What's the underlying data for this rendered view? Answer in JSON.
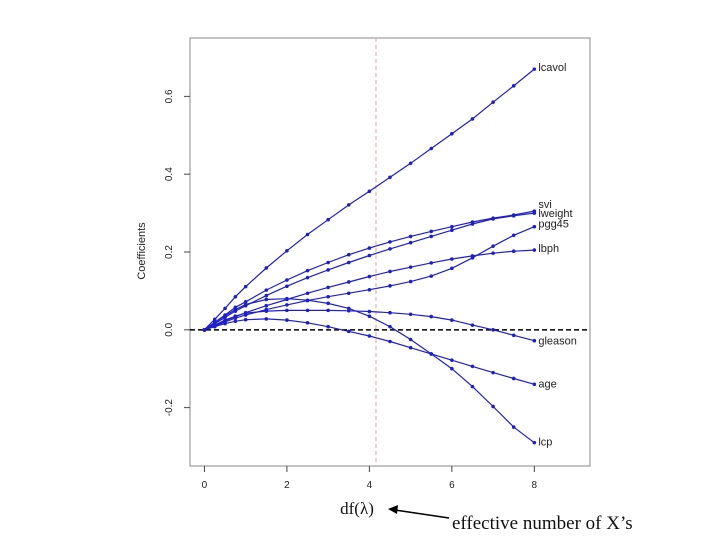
{
  "chart_data": {
    "type": "line",
    "xlabel": "df(λ)",
    "ylabel": "Coefficients",
    "xlim": [
      -0.35,
      9.35
    ],
    "ylim": [
      -0.35,
      0.75
    ],
    "x_ticks": [
      0,
      2,
      4,
      6,
      8
    ],
    "y_ticks": [
      -0.2,
      0.0,
      0.2,
      0.4,
      0.6
    ],
    "y_tick_labels": [
      "-0.2",
      "0.0",
      "0.2",
      "0.4",
      "0.6"
    ],
    "grid": false,
    "reference_lines": {
      "vertical_x": 4.16,
      "horizontal_y": 0.0
    },
    "annotation": "effective number of X’s",
    "colors": {
      "series": "#1f1fc8",
      "zero_line": "#000000",
      "vertical_line": "#d8a7a7",
      "frame": "#888888"
    },
    "x": [
      0,
      0.25,
      0.5,
      0.75,
      1,
      1.5,
      2,
      2.5,
      3,
      3.5,
      4,
      4.5,
      5,
      5.5,
      6,
      6.5,
      7,
      7.5,
      8
    ],
    "series": [
      {
        "name": "lcavol",
        "values": [
          0,
          0.027,
          0.055,
          0.085,
          0.111,
          0.159,
          0.203,
          0.245,
          0.283,
          0.321,
          0.356,
          0.392,
          0.428,
          0.466,
          0.504,
          0.542,
          0.585,
          0.627,
          0.67
        ]
      },
      {
        "name": "svi",
        "values": [
          0,
          0.019,
          0.038,
          0.058,
          0.072,
          0.102,
          0.128,
          0.152,
          0.173,
          0.193,
          0.21,
          0.226,
          0.24,
          0.253,
          0.265,
          0.277,
          0.287,
          0.295,
          0.305
        ]
      },
      {
        "name": "lweight",
        "values": [
          0,
          0.016,
          0.032,
          0.048,
          0.062,
          0.088,
          0.112,
          0.134,
          0.154,
          0.173,
          0.191,
          0.208,
          0.224,
          0.24,
          0.256,
          0.272,
          0.285,
          0.293,
          0.3
        ]
      },
      {
        "name": "pgg45",
        "values": [
          0,
          0.01,
          0.02,
          0.03,
          0.038,
          0.052,
          0.064,
          0.075,
          0.085,
          0.094,
          0.103,
          0.113,
          0.124,
          0.138,
          0.158,
          0.185,
          0.215,
          0.243,
          0.265
        ]
      },
      {
        "name": "lbph",
        "values": [
          0,
          0.011,
          0.023,
          0.034,
          0.044,
          0.062,
          0.078,
          0.094,
          0.109,
          0.123,
          0.137,
          0.15,
          0.161,
          0.172,
          0.182,
          0.19,
          0.197,
          0.202,
          0.205
        ]
      },
      {
        "name": "gleason",
        "values": [
          0,
          0.012,
          0.025,
          0.035,
          0.043,
          0.048,
          0.05,
          0.05,
          0.05,
          0.049,
          0.047,
          0.044,
          0.04,
          0.034,
          0.025,
          0.012,
          0.0,
          -0.014,
          -0.028
        ]
      },
      {
        "name": "age",
        "values": [
          0,
          0.008,
          0.016,
          0.022,
          0.026,
          0.028,
          0.025,
          0.018,
          0.008,
          -0.004,
          -0.016,
          -0.03,
          -0.046,
          -0.062,
          -0.078,
          -0.094,
          -0.11,
          -0.125,
          -0.14
        ]
      },
      {
        "name": "lcp",
        "values": [
          0,
          0.018,
          0.036,
          0.052,
          0.065,
          0.078,
          0.08,
          0.076,
          0.068,
          0.055,
          0.035,
          0.008,
          -0.025,
          -0.062,
          -0.1,
          -0.146,
          -0.197,
          -0.25,
          -0.29
        ]
      }
    ]
  }
}
